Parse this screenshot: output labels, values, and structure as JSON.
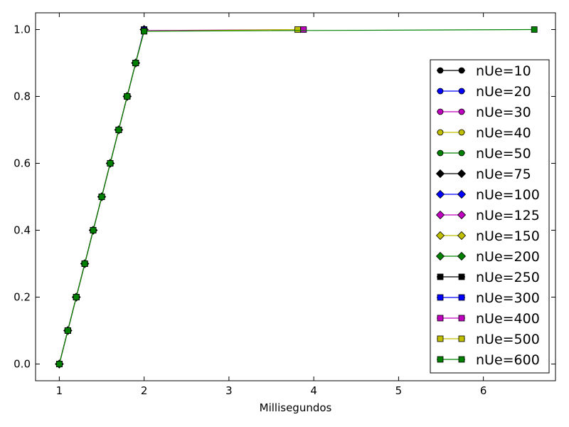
{
  "chart_data": {
    "type": "line",
    "xlabel": "Millisegundos",
    "ylabel": "",
    "xlim": [
      0.72,
      6.85
    ],
    "ylim": [
      -0.05,
      1.05
    ],
    "xticks": [
      1,
      2,
      3,
      4,
      5,
      6
    ],
    "yticks": [
      0.0,
      0.2,
      0.4,
      0.6,
      0.8,
      1.0
    ],
    "grid": false,
    "legend_position": "right",
    "series": [
      {
        "name": "nUe=10",
        "color": "#000000",
        "marker": "circle",
        "x": [
          1.0,
          1.1,
          1.2,
          1.3,
          1.4,
          1.5,
          1.6,
          1.7,
          1.8,
          1.9,
          2.0
        ],
        "y": [
          0.0,
          0.1,
          0.2,
          0.3,
          0.4,
          0.5,
          0.6,
          0.7,
          0.8,
          0.9,
          1.0
        ]
      },
      {
        "name": "nUe=20",
        "color": "#0000ff",
        "marker": "circle",
        "x": [
          1.0,
          1.1,
          1.2,
          1.3,
          1.4,
          1.5,
          1.6,
          1.7,
          1.8,
          1.9,
          2.0
        ],
        "y": [
          0.0,
          0.1,
          0.2,
          0.3,
          0.4,
          0.5,
          0.6,
          0.7,
          0.8,
          0.9,
          1.0
        ]
      },
      {
        "name": "nUe=30",
        "color": "#bf00bf",
        "marker": "circle",
        "x": [
          1.0,
          1.1,
          1.2,
          1.3,
          1.4,
          1.5,
          1.6,
          1.7,
          1.8,
          1.9,
          2.0
        ],
        "y": [
          0.0,
          0.1,
          0.2,
          0.3,
          0.4,
          0.5,
          0.6,
          0.7,
          0.8,
          0.9,
          1.0
        ]
      },
      {
        "name": "nUe=40",
        "color": "#bfbf00",
        "marker": "circle",
        "x": [
          1.0,
          1.1,
          1.2,
          1.3,
          1.4,
          1.5,
          1.6,
          1.7,
          1.8,
          1.9,
          2.0
        ],
        "y": [
          0.0,
          0.1,
          0.2,
          0.3,
          0.4,
          0.5,
          0.6,
          0.7,
          0.8,
          0.9,
          1.0
        ]
      },
      {
        "name": "nUe=50",
        "color": "#008000",
        "marker": "circle",
        "x": [
          1.0,
          1.1,
          1.2,
          1.3,
          1.4,
          1.5,
          1.6,
          1.7,
          1.8,
          1.9,
          2.0
        ],
        "y": [
          0.0,
          0.1,
          0.2,
          0.3,
          0.4,
          0.5,
          0.6,
          0.7,
          0.8,
          0.9,
          1.0
        ]
      },
      {
        "name": "nUe=75",
        "color": "#000000",
        "marker": "diamond",
        "x": [
          1.0,
          1.1,
          1.2,
          1.3,
          1.4,
          1.5,
          1.6,
          1.7,
          1.8,
          1.9,
          2.0
        ],
        "y": [
          0.0,
          0.1,
          0.2,
          0.3,
          0.4,
          0.5,
          0.6,
          0.7,
          0.8,
          0.9,
          1.0
        ]
      },
      {
        "name": "nUe=100",
        "color": "#0000ff",
        "marker": "diamond",
        "x": [
          1.0,
          1.1,
          1.2,
          1.3,
          1.4,
          1.5,
          1.6,
          1.7,
          1.8,
          1.9,
          2.0
        ],
        "y": [
          0.0,
          0.1,
          0.2,
          0.3,
          0.4,
          0.5,
          0.6,
          0.7,
          0.8,
          0.9,
          1.0
        ]
      },
      {
        "name": "nUe=125",
        "color": "#bf00bf",
        "marker": "diamond",
        "x": [
          1.0,
          1.1,
          1.2,
          1.3,
          1.4,
          1.5,
          1.6,
          1.7,
          1.8,
          1.9,
          2.0
        ],
        "y": [
          0.0,
          0.1,
          0.2,
          0.3,
          0.4,
          0.5,
          0.6,
          0.7,
          0.8,
          0.9,
          1.0
        ]
      },
      {
        "name": "nUe=150",
        "color": "#bfbf00",
        "marker": "diamond",
        "x": [
          1.0,
          1.1,
          1.2,
          1.3,
          1.4,
          1.5,
          1.6,
          1.7,
          1.8,
          1.9,
          2.0
        ],
        "y": [
          0.0,
          0.1,
          0.2,
          0.3,
          0.4,
          0.5,
          0.6,
          0.7,
          0.8,
          0.9,
          1.0
        ]
      },
      {
        "name": "nUe=200",
        "color": "#008000",
        "marker": "diamond",
        "x": [
          1.0,
          1.1,
          1.2,
          1.3,
          1.4,
          1.5,
          1.6,
          1.7,
          1.8,
          1.9,
          2.0
        ],
        "y": [
          0.0,
          0.1,
          0.2,
          0.3,
          0.4,
          0.5,
          0.6,
          0.7,
          0.8,
          0.9,
          1.0
        ]
      },
      {
        "name": "nUe=250",
        "color": "#000000",
        "marker": "square",
        "x": [
          1.0,
          1.1,
          1.2,
          1.3,
          1.4,
          1.5,
          1.6,
          1.7,
          1.8,
          1.9,
          2.0
        ],
        "y": [
          0.0,
          0.1,
          0.2,
          0.3,
          0.4,
          0.5,
          0.6,
          0.7,
          0.8,
          0.9,
          1.0
        ]
      },
      {
        "name": "nUe=300",
        "color": "#0000ff",
        "marker": "square",
        "x": [
          1.0,
          1.1,
          1.2,
          1.3,
          1.4,
          1.5,
          1.6,
          1.7,
          1.8,
          1.9,
          2.0
        ],
        "y": [
          0.0,
          0.1,
          0.2,
          0.3,
          0.4,
          0.5,
          0.6,
          0.7,
          0.8,
          0.9,
          1.0
        ]
      },
      {
        "name": "nUe=400",
        "color": "#bf00bf",
        "marker": "square",
        "x": [
          1.0,
          1.1,
          1.2,
          1.3,
          1.4,
          1.5,
          1.6,
          1.7,
          1.8,
          1.9,
          2.0,
          3.88
        ],
        "y": [
          0.0,
          0.1,
          0.2,
          0.3,
          0.4,
          0.5,
          0.6,
          0.7,
          0.8,
          0.9,
          0.997,
          1.0
        ]
      },
      {
        "name": "nUe=500",
        "color": "#bfbf00",
        "marker": "square",
        "x": [
          1.0,
          1.1,
          1.2,
          1.3,
          1.4,
          1.5,
          1.6,
          1.7,
          1.8,
          1.9,
          2.0,
          3.81
        ],
        "y": [
          0.0,
          0.1,
          0.2,
          0.3,
          0.4,
          0.5,
          0.6,
          0.7,
          0.8,
          0.9,
          0.995,
          1.0
        ]
      },
      {
        "name": "nUe=600",
        "color": "#008000",
        "marker": "square",
        "x": [
          1.0,
          1.1,
          1.2,
          1.3,
          1.4,
          1.5,
          1.6,
          1.7,
          1.8,
          1.9,
          2.0,
          6.6
        ],
        "y": [
          0.0,
          0.1,
          0.2,
          0.3,
          0.4,
          0.5,
          0.6,
          0.7,
          0.8,
          0.9,
          0.995,
          1.0
        ]
      }
    ]
  }
}
